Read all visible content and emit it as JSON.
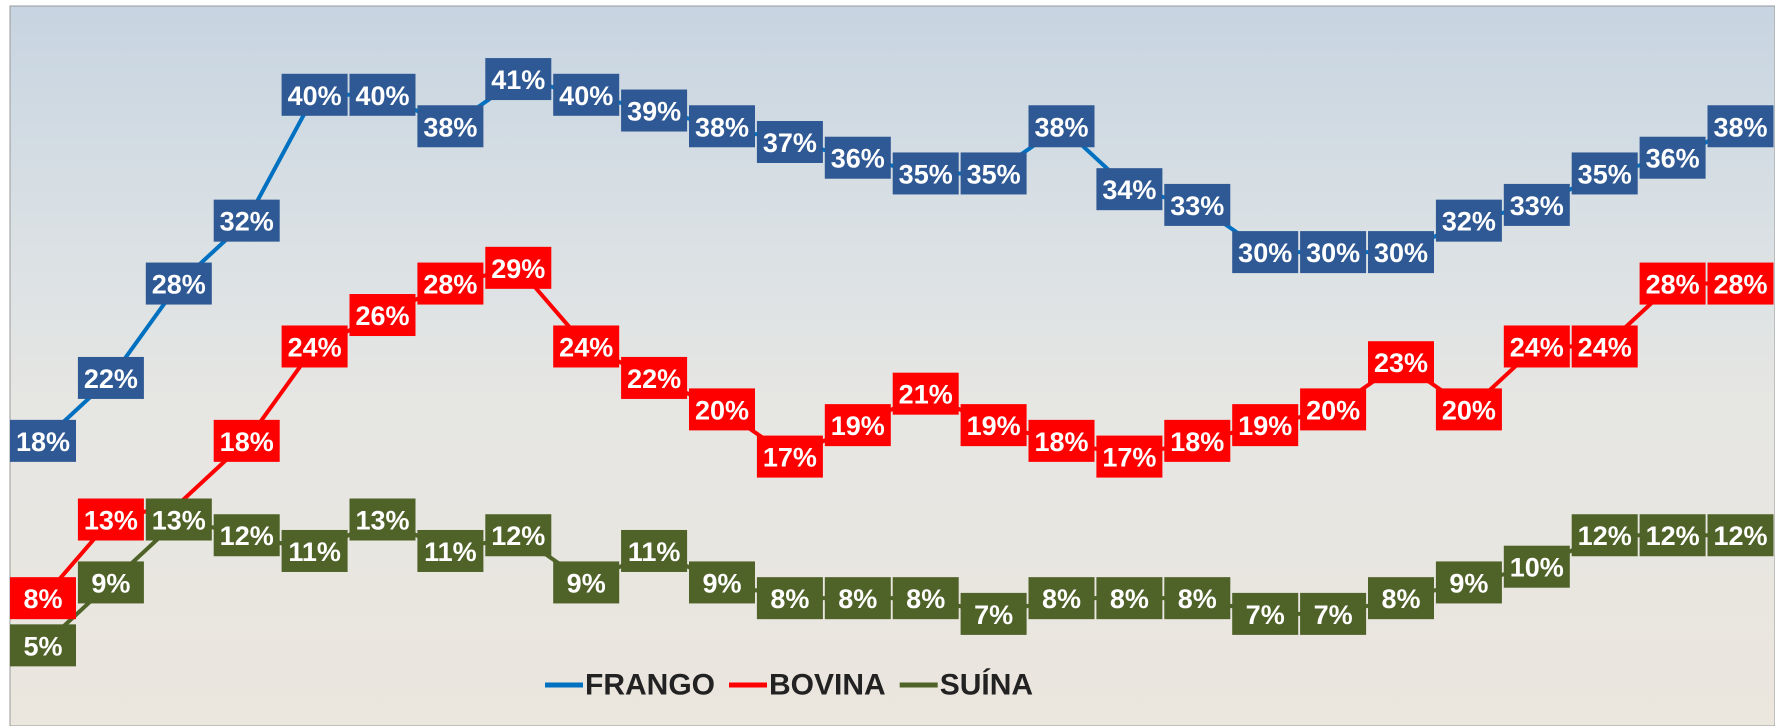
{
  "chart_data": {
    "type": "line",
    "categories": [
      null,
      null,
      null,
      null,
      null,
      null,
      null,
      null,
      null,
      null,
      null,
      null,
      null,
      null,
      null,
      null,
      null,
      null,
      null,
      null,
      null,
      null,
      null,
      null,
      null,
      null
    ],
    "series": [
      {
        "name": "FRANGO",
        "color": "#0070c0",
        "label_color": "#2f5994",
        "values": [
          18,
          22,
          28,
          32,
          40,
          40,
          38,
          41,
          40,
          39,
          38,
          37,
          36,
          35,
          35,
          38,
          34,
          33,
          30,
          30,
          30,
          32,
          33,
          35,
          36,
          38
        ],
        "value_labels": [
          "18%",
          "22%",
          "28%",
          "32%",
          "40%",
          "40%",
          "38%",
          "41%",
          "40%",
          "39%",
          "38%",
          "37%",
          "36%",
          "35%",
          "35%",
          "38%",
          "34%",
          "33%",
          "30%",
          "30%",
          "30%",
          "32%",
          "33%",
          "35%",
          "36%",
          "38%"
        ]
      },
      {
        "name": "BOVINA",
        "color": "#ff0000",
        "label_color": "#ff0000",
        "values": [
          8,
          13,
          14,
          18,
          24,
          26,
          28,
          29,
          24,
          22,
          20,
          17,
          19,
          21,
          19,
          18,
          17,
          18,
          19,
          20,
          23,
          20,
          24,
          24,
          28,
          28
        ],
        "value_labels": [
          "8%",
          "13%",
          null,
          "18%",
          "24%",
          "26%",
          "28%",
          "29%",
          "24%",
          "22%",
          "20%",
          "17%",
          "19%",
          "21%",
          "19%",
          "18%",
          "17%",
          "18%",
          "19%",
          "20%",
          "23%",
          "20%",
          "24%",
          "24%",
          "28%",
          "28%"
        ]
      },
      {
        "name": "SUÍNA",
        "color": "#4f6228",
        "label_color": "#4f6228",
        "values": [
          5,
          9,
          13,
          12,
          11,
          13,
          11,
          12,
          9,
          11,
          9,
          8,
          8,
          8,
          7,
          8,
          8,
          8,
          7,
          7,
          8,
          9,
          10,
          12,
          12,
          12
        ],
        "value_labels": [
          "5%",
          "9%",
          "13%",
          "12%",
          "11%",
          "13%",
          "11%",
          "12%",
          "9%",
          "11%",
          "9%",
          "8%",
          "8%",
          "8%",
          "7%",
          "8%",
          "8%",
          "8%",
          "7%",
          "7%",
          "8%",
          "9%",
          "10%",
          "12%",
          "12%",
          "12%"
        ]
      }
    ],
    "legend": "bottom"
  }
}
